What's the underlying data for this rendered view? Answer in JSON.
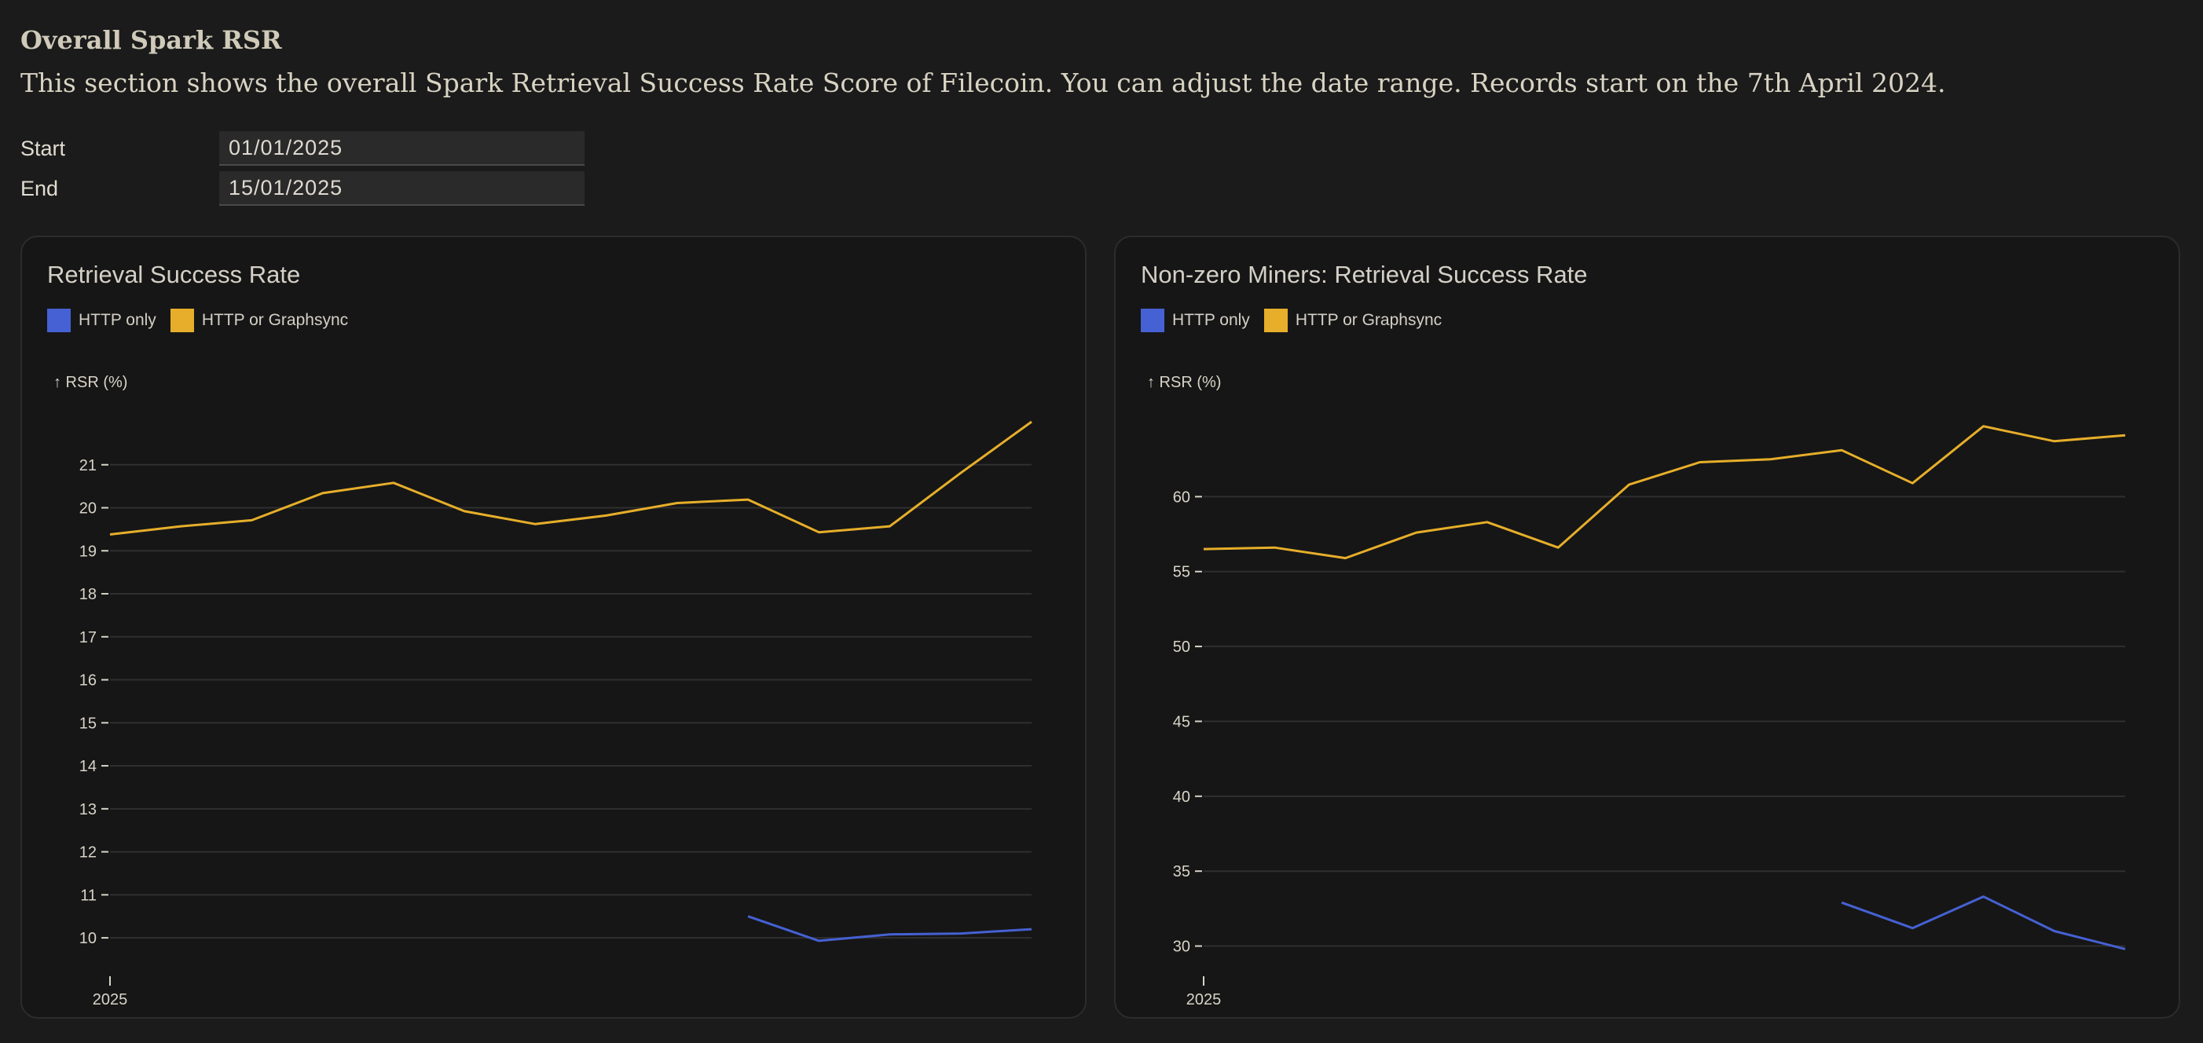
{
  "section": {
    "title": "Overall Spark RSR",
    "description": "This section shows the overall Spark Retrieval Success Rate Score of Filecoin. You can adjust the date range. Records start on the 7th April 2024."
  },
  "date_range": {
    "start_label": "Start",
    "start_value": "01/01/2025",
    "end_label": "End",
    "end_value": "15/01/2025"
  },
  "colors": {
    "http_only": "#4561d3",
    "http_or_graphsync": "#e6ae2a"
  },
  "charts": [
    {
      "title": "Retrieval Success Rate",
      "legend": [
        "HTTP only",
        "HTTP or Graphsync"
      ],
      "ylabel": "↑ RSR (%)",
      "xtick": "2025"
    },
    {
      "title": "Non-zero Miners: Retrieval Success Rate",
      "legend": [
        "HTTP only",
        "HTTP or Graphsync"
      ],
      "ylabel": "↑ RSR (%)",
      "xtick": "2025"
    }
  ],
  "chart_data": [
    {
      "type": "line",
      "title": "Retrieval Success Rate",
      "ylabel": "↑ RSR (%)",
      "x": [
        "2025-01-01",
        "2025-01-02",
        "2025-01-03",
        "2025-01-04",
        "2025-01-05",
        "2025-01-06",
        "2025-01-07",
        "2025-01-08",
        "2025-01-09",
        "2025-01-10",
        "2025-01-11",
        "2025-01-12",
        "2025-01-13",
        "2025-01-14"
      ],
      "x_ticks": [
        "2025"
      ],
      "yticks": [
        10,
        11,
        12,
        13,
        14,
        15,
        16,
        17,
        18,
        19,
        20,
        21
      ],
      "ylim": [
        9.6,
        22.0
      ],
      "grid": true,
      "legend_position": "top-left",
      "series": [
        {
          "name": "HTTP only",
          "color": "#4561d3",
          "values": [
            null,
            null,
            null,
            null,
            null,
            null,
            null,
            null,
            null,
            10.5,
            9.93,
            10.08,
            10.1,
            10.2
          ]
        },
        {
          "name": "HTTP or Graphsync",
          "color": "#e6ae2a",
          "values": [
            19.38,
            19.57,
            19.71,
            20.34,
            20.58,
            19.92,
            19.62,
            19.82,
            20.11,
            20.19,
            19.43,
            19.57,
            20.81,
            22.0
          ]
        }
      ]
    },
    {
      "type": "line",
      "title": "Non-zero Miners: Retrieval Success Rate",
      "ylabel": "↑ RSR (%)",
      "x": [
        "2025-01-01",
        "2025-01-02",
        "2025-01-03",
        "2025-01-04",
        "2025-01-05",
        "2025-01-06",
        "2025-01-07",
        "2025-01-08",
        "2025-01-09",
        "2025-01-10",
        "2025-01-11",
        "2025-01-12",
        "2025-01-13",
        "2025-01-14"
      ],
      "x_ticks": [
        "2025"
      ],
      "yticks": [
        30,
        35,
        40,
        45,
        50,
        55,
        60
      ],
      "ylim": [
        29.4,
        65.0
      ],
      "grid": true,
      "legend_position": "top-left",
      "series": [
        {
          "name": "HTTP only",
          "color": "#4561d3",
          "values": [
            null,
            null,
            null,
            null,
            null,
            null,
            null,
            null,
            null,
            32.9,
            31.2,
            33.3,
            31.0,
            29.8
          ]
        },
        {
          "name": "HTTP or Graphsync",
          "color": "#e6ae2a",
          "values": [
            56.5,
            56.6,
            55.9,
            57.6,
            58.3,
            56.6,
            60.8,
            62.3,
            62.5,
            63.1,
            60.9,
            64.7,
            63.7,
            64.1
          ]
        }
      ]
    }
  ]
}
